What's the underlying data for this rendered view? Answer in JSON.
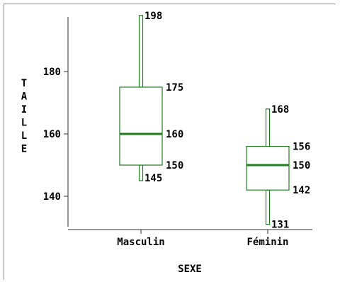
{
  "chart_data": {
    "type": "boxplot",
    "title": "",
    "xlabel": "SEXE",
    "ylabel": "TAILLE",
    "y_ticks": [
      140,
      160,
      180
    ],
    "ylim": [
      130,
      200
    ],
    "grid": false,
    "colors": {
      "box": "#1f7f1f",
      "median": "#1f7f1f",
      "axis": "#333333"
    },
    "categories": [
      "Masculin",
      "Féminin"
    ],
    "series": [
      {
        "category": "Masculin",
        "min": 145,
        "q1": 150,
        "median": 160,
        "q3": 175,
        "max": 198,
        "labels": [
          "198",
          "175",
          "160",
          "150",
          "145"
        ]
      },
      {
        "category": "Féminin",
        "min": 131,
        "q1": 142,
        "median": 150,
        "q3": 156,
        "max": 168,
        "labels": [
          "168",
          "156",
          "150",
          "142",
          "131"
        ]
      }
    ]
  }
}
